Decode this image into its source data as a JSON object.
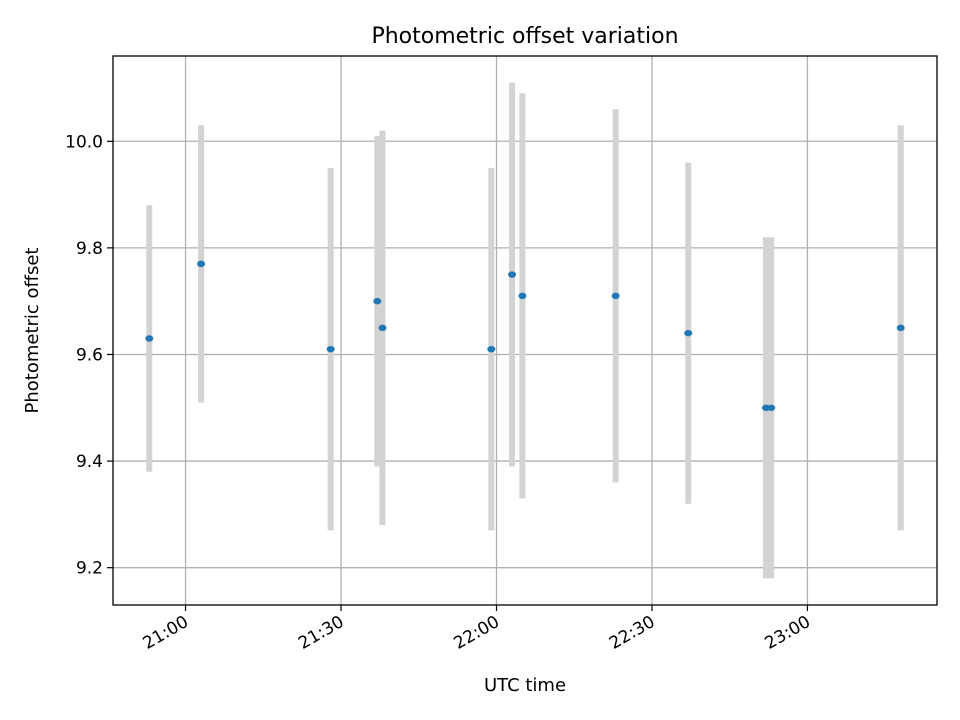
{
  "chart_data": {
    "type": "scatter",
    "title": "Photometric offset variation",
    "xlabel": "UTC time",
    "ylabel": "Photometric offset",
    "x_ticks": [
      "21:00",
      "21:30",
      "22:00",
      "22:30",
      "23:00"
    ],
    "y_ticks": [
      "9.2",
      "9.4",
      "9.6",
      "9.8",
      "10.0"
    ],
    "xlim": [
      "20:46",
      "23:25"
    ],
    "ylim": [
      9.13,
      10.16
    ],
    "grid": true,
    "errorbar_color": "#d3d3d3",
    "point_color": "#1f77b4",
    "points": [
      {
        "x": "20:53",
        "y": 9.63,
        "yerr": 0.25
      },
      {
        "x": "21:03",
        "y": 9.77,
        "yerr": 0.26
      },
      {
        "x": "21:28",
        "y": 9.61,
        "yerr": 0.34
      },
      {
        "x": "21:37",
        "y": 9.7,
        "yerr": 0.31
      },
      {
        "x": "21:38",
        "y": 9.65,
        "yerr": 0.37
      },
      {
        "x": "21:59",
        "y": 9.61,
        "yerr": 0.34
      },
      {
        "x": "22:03",
        "y": 9.75,
        "yerr": 0.36
      },
      {
        "x": "22:05",
        "y": 9.71,
        "yerr": 0.38
      },
      {
        "x": "22:23",
        "y": 9.71,
        "yerr": 0.35
      },
      {
        "x": "22:37",
        "y": 9.64,
        "yerr": 0.32
      },
      {
        "x": "22:52",
        "y": 9.5,
        "yerr": 0.32
      },
      {
        "x": "22:53",
        "y": 9.5,
        "yerr": 0.32
      },
      {
        "x": "23:18",
        "y": 9.65,
        "yerr": 0.38
      }
    ]
  }
}
